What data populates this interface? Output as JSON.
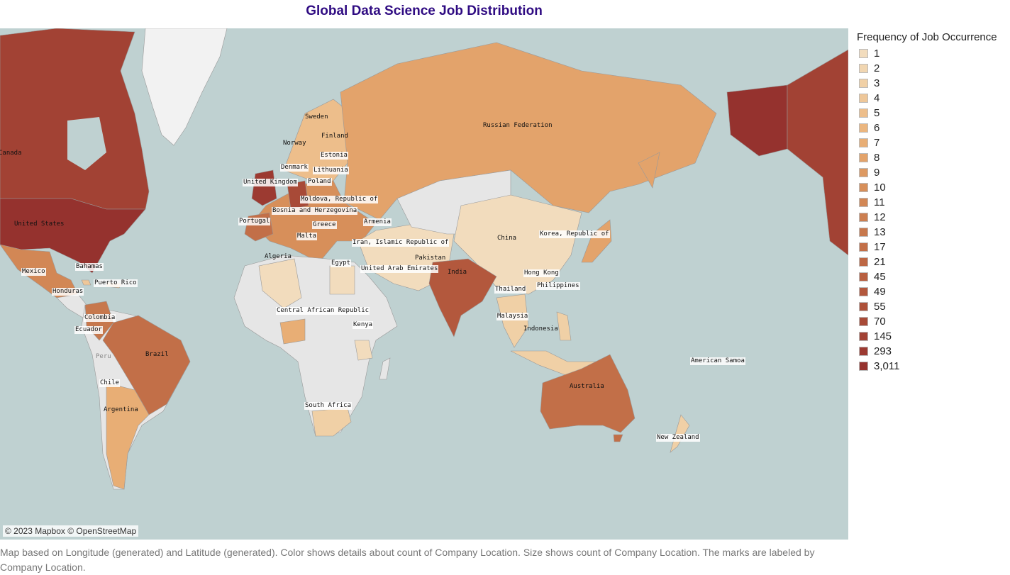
{
  "title": "Global Data Science Job Distribution",
  "attribution": "© 2023 Mapbox © OpenStreetMap",
  "caption": "Map based on Longitude (generated) and Latitude (generated).  Color shows details about count of Company Location.  Size shows count of Company Location.  The marks are labeled by Company Location.",
  "legend": {
    "title": "Frequency of Job Occurrence",
    "items": [
      {
        "label": "1",
        "color": "#f2dcbd"
      },
      {
        "label": "2",
        "color": "#f1d6b1"
      },
      {
        "label": "3",
        "color": "#f0d0a6"
      },
      {
        "label": "4",
        "color": "#eec799"
      },
      {
        "label": "5",
        "color": "#edbe8b"
      },
      {
        "label": "6",
        "color": "#ebb67f"
      },
      {
        "label": "7",
        "color": "#e8ae75"
      },
      {
        "label": "8",
        "color": "#e3a36b"
      },
      {
        "label": "9",
        "color": "#dd9962"
      },
      {
        "label": "10",
        "color": "#d78f5a"
      },
      {
        "label": "11",
        "color": "#d28755"
      },
      {
        "label": "12",
        "color": "#cc7f51"
      },
      {
        "label": "13",
        "color": "#c7784d"
      },
      {
        "label": "17",
        "color": "#c26f48"
      },
      {
        "label": "21",
        "color": "#bd6744"
      },
      {
        "label": "45",
        "color": "#b85f40"
      },
      {
        "label": "49",
        "color": "#b3583d"
      },
      {
        "label": "55",
        "color": "#ae513a"
      },
      {
        "label": "70",
        "color": "#a84a37"
      },
      {
        "label": "145",
        "color": "#a24234"
      },
      {
        "label": "293",
        "color": "#9c3a31"
      },
      {
        "label": "3,011",
        "color": "#95322e"
      }
    ]
  },
  "map": {
    "ocean_color": "#bfd1d1",
    "land_color": "#e6e6e6",
    "labels": {
      "canada": "Canada",
      "united_states": "United States",
      "mexico": "Mexico",
      "bahamas": "Bahamas",
      "puerto_rico": "Puerto Rico",
      "honduras": "Honduras",
      "colombia": "Colombia",
      "ecuador": "Ecuador",
      "peru": "Peru",
      "brazil": "Brazil",
      "chile": "Chile",
      "argentina": "Argentina",
      "sweden": "Sweden",
      "finland": "Finland",
      "norway": "Norway",
      "estonia": "Estonia",
      "denmark": "Denmark",
      "lithuania": "Lithuania",
      "united_kingdom": "United Kingdom",
      "poland": "Poland",
      "moldova": "Moldova, Republic of",
      "bosnia": "Bosnia and Herzegovina",
      "portugal": "Portugal",
      "greece": "Greece",
      "armenia": "Armenia",
      "malta": "Malta",
      "algeria": "Algeria",
      "egypt": "Egypt",
      "iran": "Iran, Islamic Republic of",
      "uae": "United Arab Emirates",
      "pakistan": "Pakistan",
      "india": "India",
      "russia": "Russian Federation",
      "china": "China",
      "korea": "Korea, Republic of",
      "hong_kong": "Hong Kong",
      "thailand": "Thailand",
      "philippines": "Philippines",
      "malaysia": "Malaysia",
      "indonesia": "Indonesia",
      "car": "Central African Republic",
      "kenya": "Kenya",
      "south_africa": "South Africa",
      "australia": "Australia",
      "american_samoa": "American Samoa",
      "new_zealand": "New Zealand"
    }
  }
}
